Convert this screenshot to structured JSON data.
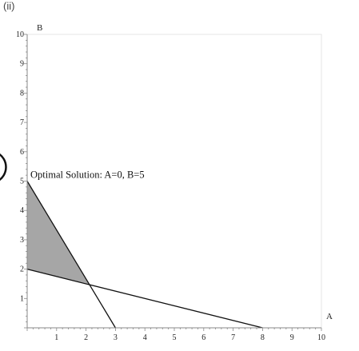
{
  "page_label": "(ii)",
  "chart_data": {
    "type": "line",
    "title": "",
    "xlabel": "A",
    "ylabel": "B",
    "xlim": [
      0,
      10
    ],
    "ylim": [
      0,
      10
    ],
    "x_ticks": [
      1,
      2,
      3,
      4,
      5,
      6,
      7,
      8,
      9,
      10
    ],
    "y_ticks": [
      1,
      2,
      3,
      4,
      5,
      6,
      7,
      8,
      9,
      10
    ],
    "grid": false,
    "series": [
      {
        "points": [
          [
            0,
            5
          ],
          [
            3,
            0
          ]
        ]
      },
      {
        "points": [
          [
            0,
            2
          ],
          [
            8,
            0
          ]
        ]
      }
    ],
    "shaded_region": {
      "points": [
        [
          0,
          2
        ],
        [
          0,
          5
        ],
        [
          2.1,
          1.5
        ]
      ],
      "color": "#a6a6a6"
    },
    "annotation": {
      "text": "Optimal Solution: A=0, B=5",
      "at": [
        0,
        5
      ]
    },
    "colors": {
      "line": "#111111",
      "axis": "#888888",
      "frame": "#e6e6e6"
    }
  }
}
